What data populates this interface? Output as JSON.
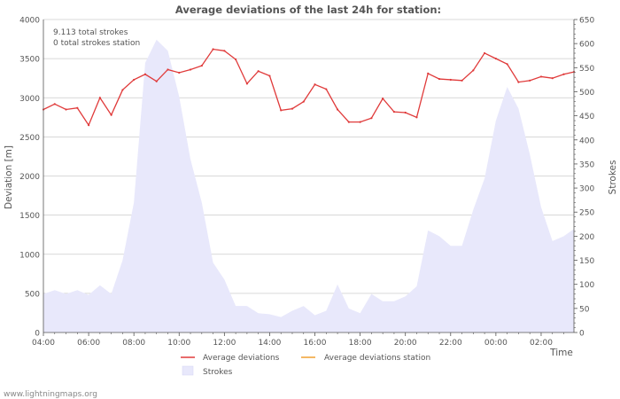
{
  "chart_data": {
    "type": "line",
    "title": "Average deviations of the last 24h for station:",
    "annotations": [
      "9.113 total strokes",
      "0 total strokes station"
    ],
    "ylabel_left": "Deviation  [m]",
    "ylabel_right": "Strokes",
    "xlabel": "Time",
    "footer": "www.lightningmaps.org",
    "x_range_hours": [
      4.0,
      27.45
    ],
    "ylim_left": [
      0,
      4000
    ],
    "ylim_right": [
      0,
      650
    ],
    "left_ticks": [
      0,
      500,
      1000,
      1500,
      2000,
      2500,
      3000,
      3500,
      4000
    ],
    "right_ticks": [
      0,
      50,
      100,
      150,
      200,
      250,
      300,
      350,
      400,
      450,
      500,
      550,
      600,
      650
    ],
    "x_ticks": [
      {
        "h": 4,
        "label": "04:00"
      },
      {
        "h": 6,
        "label": "06:00"
      },
      {
        "h": 8,
        "label": "08:00"
      },
      {
        "h": 10,
        "label": "10:00"
      },
      {
        "h": 12,
        "label": "12:00"
      },
      {
        "h": 14,
        "label": "14:00"
      },
      {
        "h": 16,
        "label": "16:00"
      },
      {
        "h": 18,
        "label": "18:00"
      },
      {
        "h": 20,
        "label": "20:00"
      },
      {
        "h": 22,
        "label": "22:00"
      },
      {
        "h": 24,
        "label": "00:00"
      },
      {
        "h": 26,
        "label": "02:00"
      }
    ],
    "series": [
      {
        "name": "Average deviations",
        "axis": "left",
        "style": "line",
        "color": "#e03a3a",
        "x": [
          4.0,
          4.5,
          5.0,
          5.5,
          6.0,
          6.5,
          7.0,
          7.5,
          8.0,
          8.5,
          9.0,
          9.5,
          10.0,
          10.5,
          11.0,
          11.5,
          12.0,
          12.5,
          13.0,
          13.5,
          14.0,
          14.5,
          15.0,
          15.5,
          16.0,
          16.5,
          17.0,
          17.5,
          18.0,
          18.5,
          19.0,
          19.5,
          20.0,
          20.5,
          21.0,
          21.5,
          22.0,
          22.5,
          23.0,
          23.5,
          24.0,
          24.5,
          25.0,
          25.5,
          26.0,
          26.5,
          27.0,
          27.45
        ],
        "values": [
          2850,
          2920,
          2850,
          2870,
          2650,
          3000,
          2780,
          3100,
          3230,
          3300,
          3210,
          3360,
          3320,
          3360,
          3410,
          3620,
          3600,
          3490,
          3180,
          3340,
          3280,
          2840,
          2860,
          2950,
          3170,
          3110,
          2850,
          2690,
          2690,
          2740,
          2990,
          2820,
          2810,
          2750,
          3310,
          3240,
          3230,
          3220,
          3350,
          3570,
          3500,
          3430,
          3200,
          3220,
          3270,
          3250,
          3300,
          3330
        ]
      },
      {
        "name": "Average deviations station",
        "axis": "left",
        "style": "line",
        "color": "#f0a030",
        "x": [],
        "values": []
      },
      {
        "name": "Strokes",
        "axis": "right",
        "style": "area",
        "color": "#e8e8fb",
        "x": [
          4.0,
          4.5,
          5.0,
          5.5,
          6.0,
          6.5,
          7.0,
          7.5,
          8.0,
          8.5,
          9.0,
          9.5,
          10.0,
          10.5,
          11.0,
          11.5,
          12.0,
          12.5,
          13.0,
          13.5,
          14.0,
          14.5,
          15.0,
          15.5,
          16.0,
          16.5,
          17.0,
          17.5,
          18.0,
          18.5,
          19.0,
          19.5,
          20.0,
          20.5,
          21.0,
          21.5,
          22.0,
          22.5,
          23.0,
          23.5,
          24.0,
          24.5,
          25.0,
          25.5,
          26.0,
          26.5,
          27.0,
          27.45
        ],
        "values": [
          80,
          88,
          80,
          88,
          78,
          98,
          80,
          150,
          270,
          560,
          608,
          585,
          490,
          360,
          270,
          145,
          110,
          55,
          55,
          40,
          38,
          32,
          45,
          55,
          36,
          45,
          100,
          50,
          40,
          80,
          65,
          65,
          75,
          96,
          212,
          200,
          180,
          180,
          255,
          320,
          440,
          510,
          465,
          370,
          260,
          190,
          200,
          215
        ]
      }
    ]
  }
}
